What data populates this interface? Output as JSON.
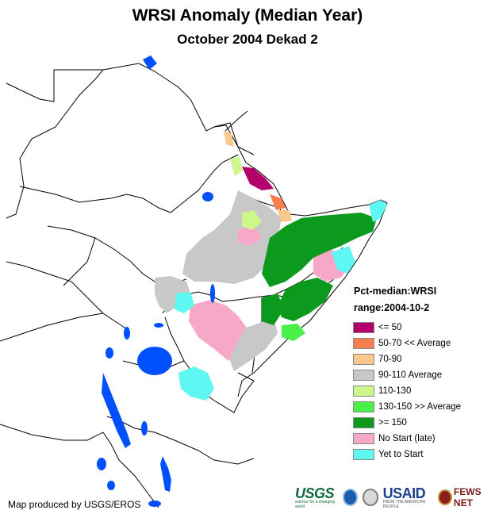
{
  "title": "WRSI Anomaly (Median Year)",
  "subtitle": "October 2004 Dekad 2",
  "legend": {
    "heading_line1": "Pct-median:WRSI",
    "heading_line2": "range:2004-10-2",
    "items": [
      {
        "label": "<= 50",
        "color": "#b3006b"
      },
      {
        "label": "50-70 << Average",
        "color": "#f77f4f"
      },
      {
        "label": "70-90",
        "color": "#fac88c"
      },
      {
        "label": "90-110 Average",
        "color": "#c8c8c8"
      },
      {
        "label": "110-130",
        "color": "#cdf78a"
      },
      {
        "label": "130-150 >> Average",
        "color": "#4af04a"
      },
      {
        "label": ">= 150",
        "color": "#0b9a1e"
      },
      {
        "label": "No Start (late)",
        "color": "#f7a8c8"
      },
      {
        "label": "Yet to Start",
        "color": "#5ff7f2"
      }
    ]
  },
  "credit": "Map produced by USGS/EROS",
  "logos": {
    "usgs": "USGS",
    "usgs_tagline": "science for a changing world",
    "usaid": "USAID",
    "usaid_tagline": "FROM THE AMERICAN PEOPLE",
    "fews": "FEWS NET"
  },
  "water_color": "#0050ff"
}
